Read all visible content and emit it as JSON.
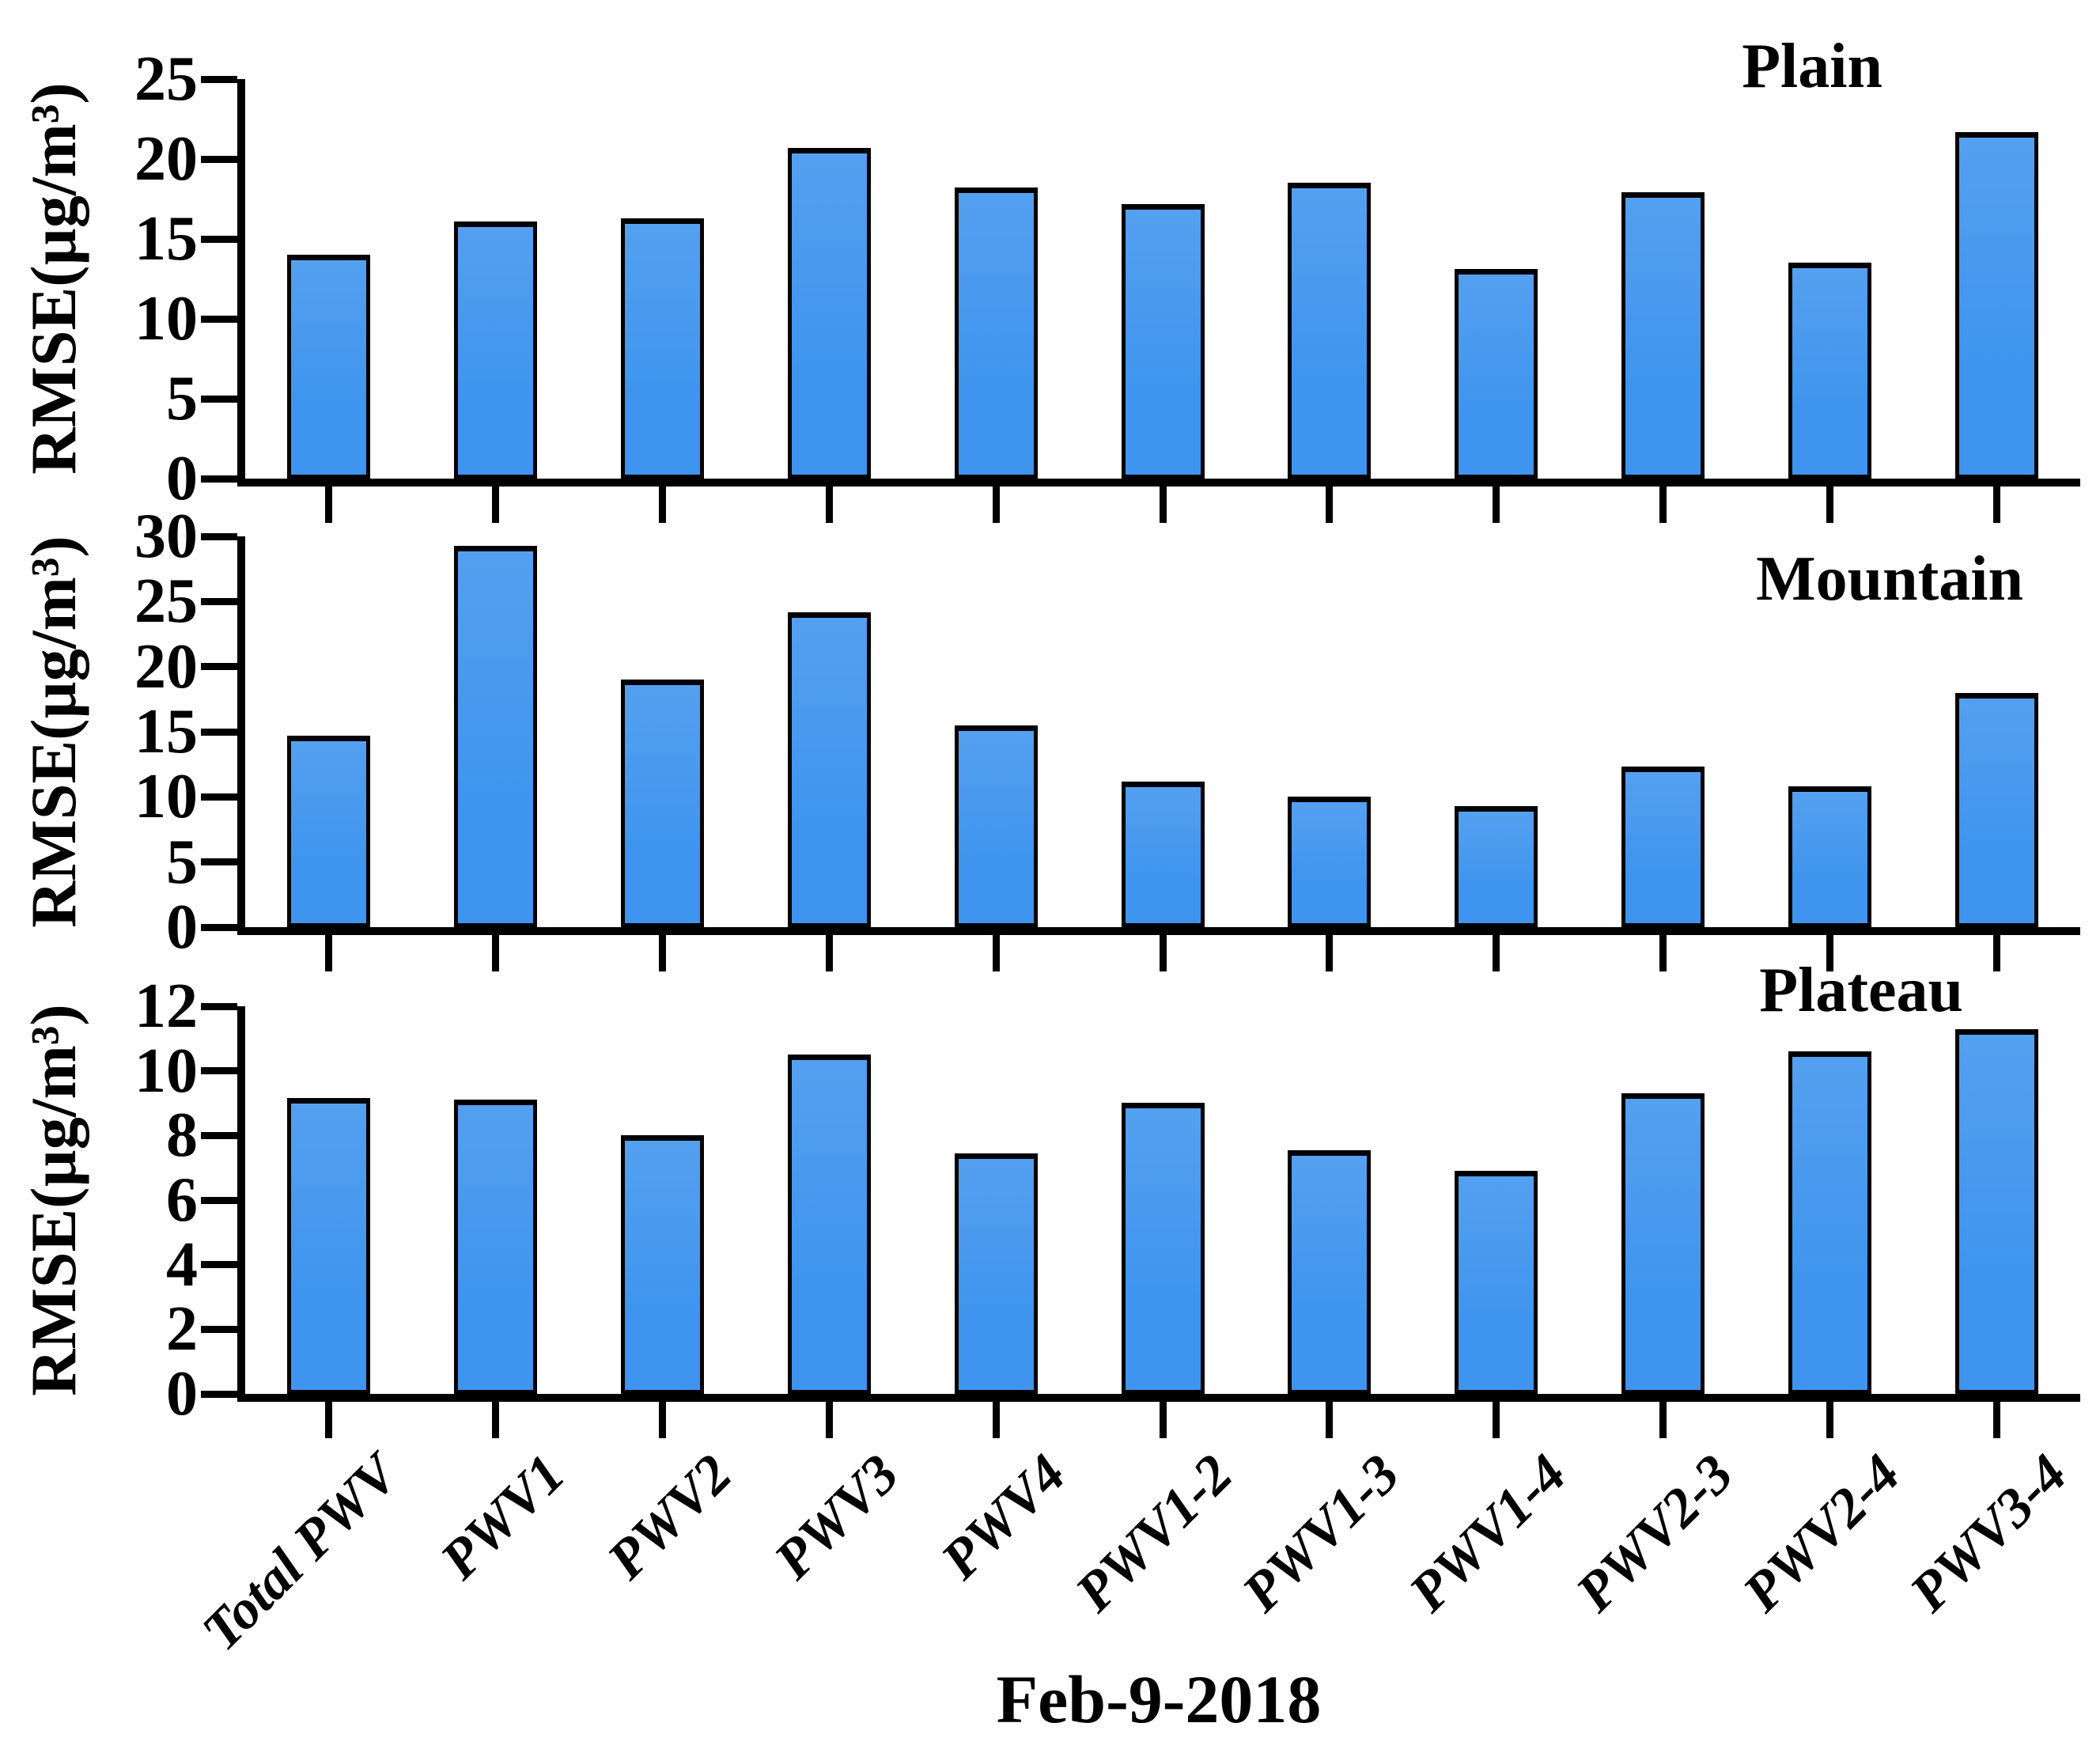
{
  "figure": {
    "background": "#ffffff",
    "bar_fill_color": "#3E94EE",
    "bar_fill_top_color": "#54A0F0",
    "bar_edge_color": "#000000"
  },
  "chart_data": {
    "type": "bar",
    "categories": [
      "Total PWV",
      "PWV1",
      "PWV2",
      "PWV3",
      "PWV4",
      "PWV1-2",
      "PWV1-3",
      "PWV1-4",
      "PWV2-3",
      "PWV2-4",
      "PWV3-4"
    ],
    "xlabel": "Feb-9-2018",
    "ylabel": "RMSE(µg/m³)",
    "grid": false,
    "legend": "none",
    "panels": [
      {
        "title": "Plain",
        "ylim": [
          0,
          25
        ],
        "yticks": [
          0,
          5,
          10,
          15,
          20,
          25
        ],
        "values": [
          14.0,
          16.1,
          16.3,
          20.7,
          18.2,
          17.2,
          18.5,
          13.1,
          17.9,
          13.5,
          21.7
        ]
      },
      {
        "title": "Mountain",
        "ylim": [
          0,
          30
        ],
        "yticks": [
          0,
          5,
          10,
          15,
          20,
          25,
          30
        ],
        "values": [
          14.7,
          29.3,
          19.0,
          24.2,
          15.5,
          11.2,
          10.0,
          9.3,
          12.3,
          10.8,
          18.0
        ]
      },
      {
        "title": "Plateau",
        "ylim": [
          0,
          12
        ],
        "yticks": [
          0,
          2,
          4,
          6,
          8,
          10,
          12
        ],
        "values": [
          9.15,
          9.1,
          8.0,
          10.5,
          7.45,
          9.0,
          7.55,
          6.9,
          9.3,
          10.6,
          11.3
        ]
      }
    ]
  }
}
